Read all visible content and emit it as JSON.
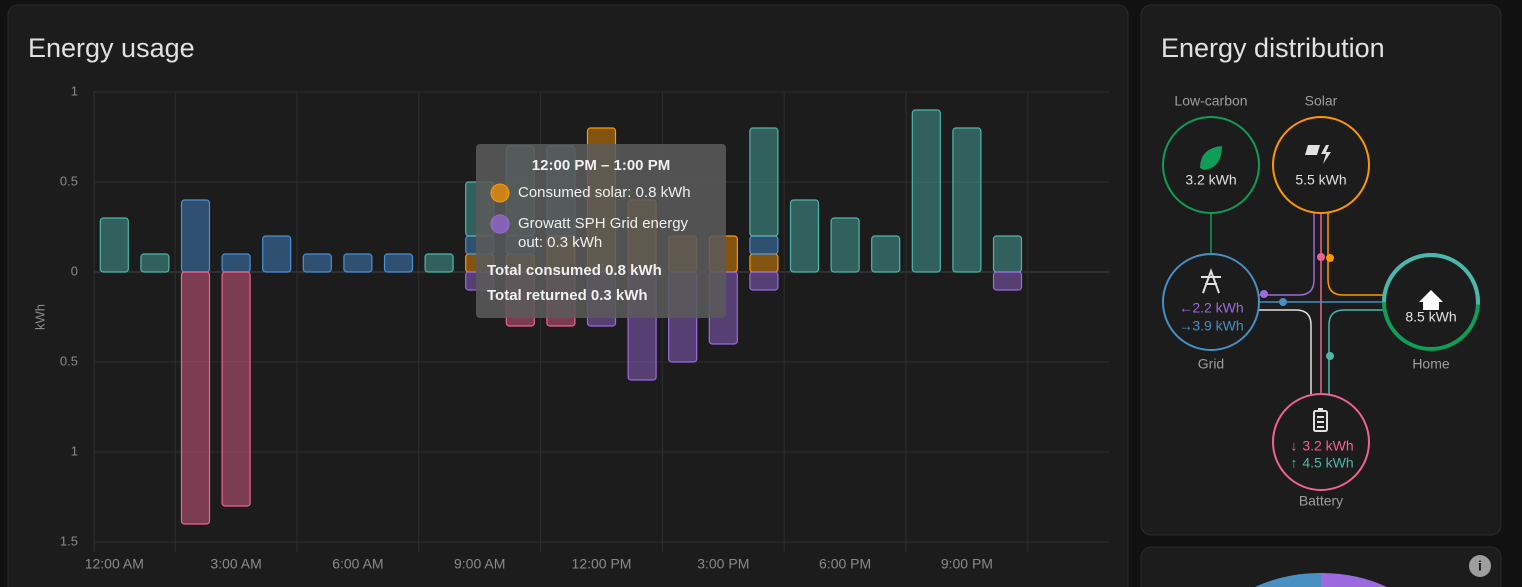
{
  "energy_usage": {
    "title": "Energy usage",
    "chart_data": {
      "type": "bar",
      "stacked": true,
      "y_label": "kWh",
      "categories": [
        "12:00 AM",
        null,
        null,
        "3:00 AM",
        null,
        null,
        "6:00 AM",
        null,
        null,
        "9:00 AM",
        null,
        null,
        "12:00 PM",
        null,
        null,
        "3:00 PM",
        null,
        null,
        "6:00 PM",
        null,
        null,
        "9:00 PM",
        null,
        null
      ],
      "series": [
        {
          "name": "Consumed solar",
          "color": "#ff9800",
          "values": [
            null,
            null,
            null,
            null,
            null,
            null,
            null,
            null,
            null,
            0.1,
            0.1,
            0.2,
            0.8,
            0.4,
            0.2,
            0.2,
            0.1,
            null,
            null,
            null,
            null,
            null,
            null,
            null
          ]
        },
        {
          "color": "#4a90d9",
          "values": [
            null,
            null,
            0.4,
            0.1,
            0.2,
            0.1,
            0.1,
            0.1,
            null,
            0.1,
            0.1,
            null,
            null,
            null,
            null,
            null,
            0.1,
            null,
            null,
            null,
            null,
            null,
            null,
            null
          ]
        },
        {
          "color": "#4db6ac",
          "values": [
            0.3,
            0.1,
            null,
            null,
            null,
            null,
            null,
            null,
            0.1,
            0.3,
            0.5,
            0.5,
            null,
            null,
            null,
            null,
            0.6,
            0.4,
            0.3,
            0.2,
            0.9,
            0.8,
            0.2,
            null
          ]
        },
        {
          "color": "#f06292",
          "values": [
            null,
            null,
            -1.4,
            -1.3,
            null,
            null,
            null,
            null,
            null,
            null,
            -0.3,
            -0.3,
            null,
            null,
            null,
            null,
            null,
            null,
            null,
            null,
            null,
            null,
            null,
            null
          ]
        },
        {
          "name": "Growatt SPH Grid energy out",
          "color": "#9c6ade",
          "values": [
            null,
            null,
            null,
            null,
            null,
            null,
            null,
            null,
            null,
            -0.1,
            null,
            null,
            -0.3,
            -0.6,
            -0.5,
            -0.4,
            -0.1,
            null,
            null,
            null,
            null,
            null,
            -0.1,
            null
          ]
        }
      ],
      "ylim": [
        -1.5,
        1
      ],
      "yticks": [
        1,
        0.5,
        0,
        {
          "value": -0.5,
          "label": "0.5"
        },
        {
          "value": -1,
          "label": "1"
        },
        {
          "value": -1.5,
          "label": "1.5"
        }
      ],
      "grid": true
    },
    "tooltip": {
      "title": "12:00 PM – 1:00 PM",
      "items": [
        "Consumed solar: 0.8 kWh",
        "Growatt SPH Grid energy out: 0.3 kWh"
      ],
      "totals": [
        "Total consumed 0.8 kWh",
        "Total returned 0.3 kWh"
      ]
    }
  },
  "energy_distribution": {
    "title": "Energy distribution",
    "low_carbon": {
      "label": "Low-carbon",
      "value": "3.2 kWh"
    },
    "solar": {
      "label": "Solar",
      "value": "5.5 kWh"
    },
    "grid": {
      "label": "Grid",
      "returned": "2.2 kWh",
      "consumed": "3.9 kWh"
    },
    "home": {
      "label": "Home",
      "value": "8.5 kWh"
    },
    "battery": {
      "label": "Battery",
      "charged": "3.2 kWh",
      "discharged": "4.5 kWh"
    }
  }
}
